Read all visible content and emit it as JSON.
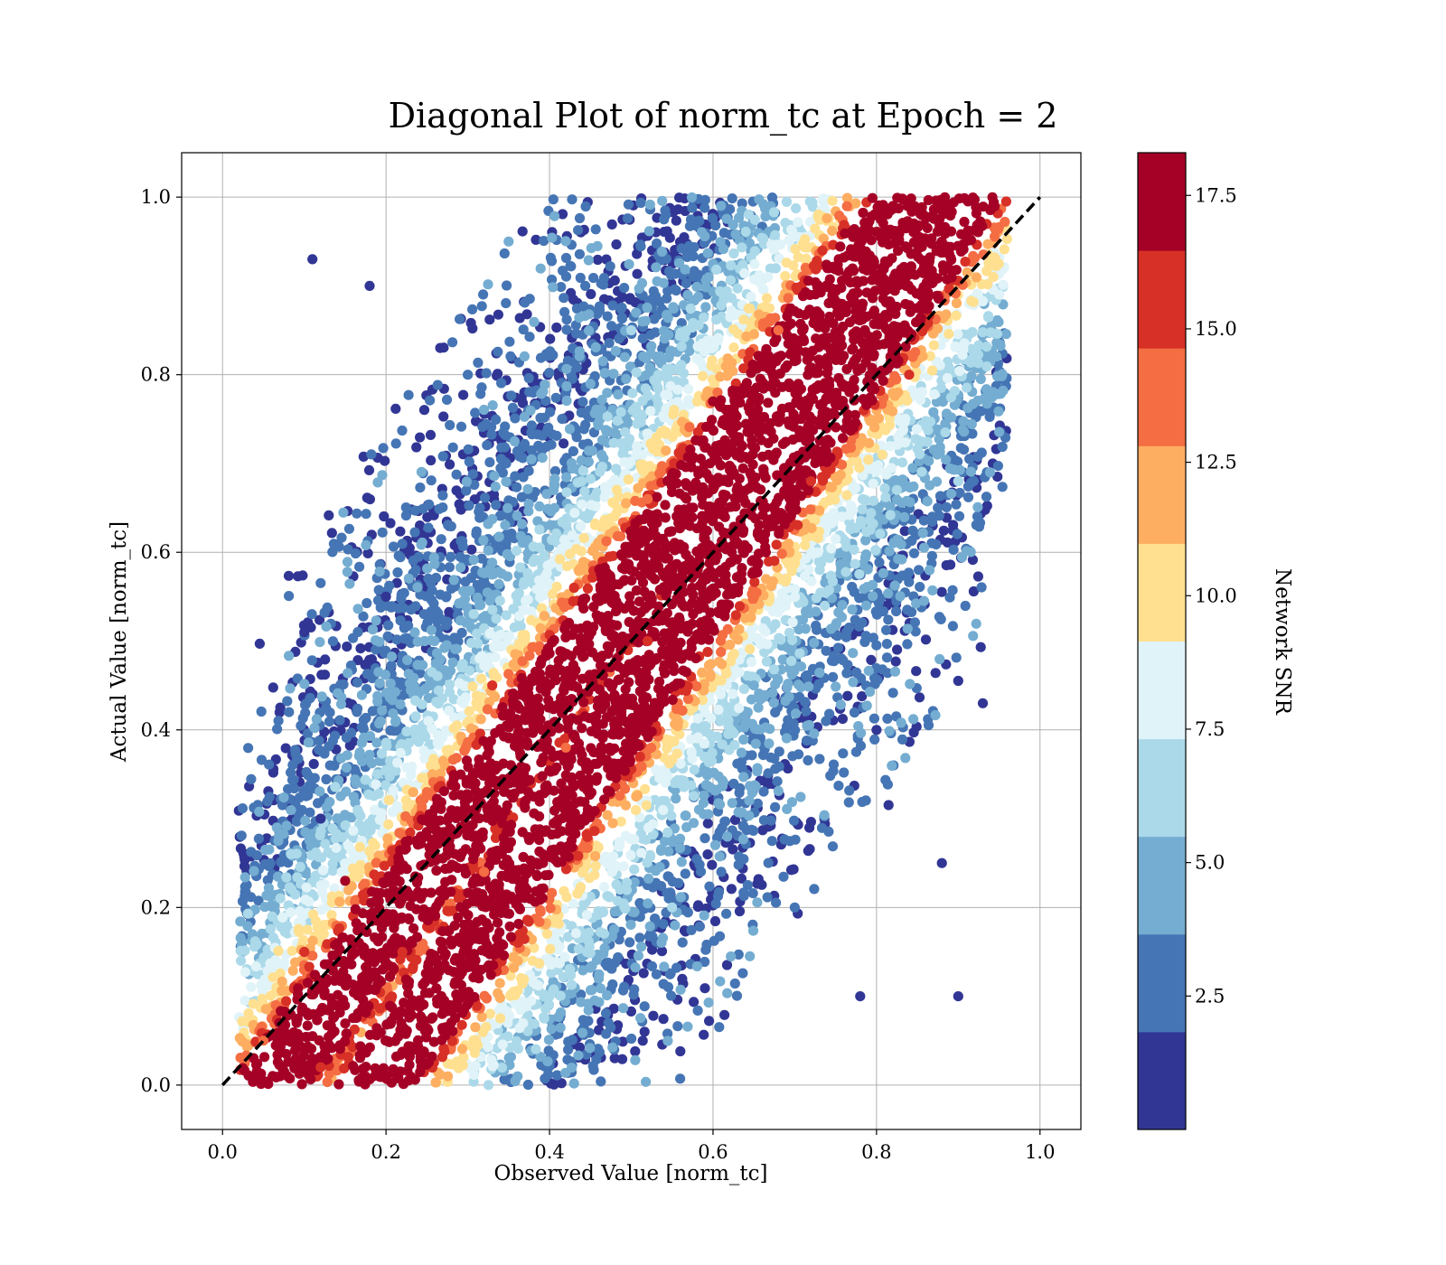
{
  "chart_data": {
    "type": "scatter",
    "title": "Diagonal Plot of norm_tc at Epoch = 2",
    "xlabel": "Observed Value [norm_tc]",
    "ylabel": "Actual Value [norm_tc]",
    "xlim": [
      -0.05,
      1.05
    ],
    "ylim": [
      -0.05,
      1.05
    ],
    "xticks": [
      "0.0",
      "0.2",
      "0.4",
      "0.6",
      "0.8",
      "1.0"
    ],
    "yticks": [
      "0.0",
      "0.2",
      "0.4",
      "0.6",
      "0.8",
      "1.0"
    ],
    "grid": true,
    "reference_line": {
      "style": "dashed",
      "color": "#000000",
      "x": [
        0,
        1
      ],
      "y": [
        0,
        1
      ]
    },
    "colorbar": {
      "label": "Network SNR",
      "range": [
        0.0,
        18.3
      ],
      "tick_values": [
        2.5,
        5.0,
        7.5,
        10.0,
        12.5,
        15.0,
        17.5
      ],
      "tick_labels": [
        "2.5",
        "5.0",
        "7.5",
        "10.0",
        "12.5",
        "15.0",
        "17.5"
      ],
      "bins": [
        {
          "color": "#313695",
          "from": 0.0,
          "to": 1.83
        },
        {
          "color": "#4575b4",
          "from": 1.83,
          "to": 3.66
        },
        {
          "color": "#74add1",
          "from": 3.66,
          "to": 5.49
        },
        {
          "color": "#abd9e9",
          "from": 5.49,
          "to": 7.32
        },
        {
          "color": "#e0f3f8",
          "from": 7.32,
          "to": 9.15
        },
        {
          "color": "#fee090",
          "from": 9.15,
          "to": 10.98
        },
        {
          "color": "#fdae61",
          "from": 10.98,
          "to": 12.81
        },
        {
          "color": "#f46d43",
          "from": 12.81,
          "to": 14.64
        },
        {
          "color": "#d73027",
          "from": 14.64,
          "to": 16.47
        },
        {
          "color": "#a50026",
          "from": 16.47,
          "to": 18.3
        }
      ]
    },
    "series": [
      {
        "colored_by": "Network SNR",
        "description_points": [
          {
            "x": 0.05,
            "y": 0.05,
            "snr": 14.0
          },
          {
            "x": 0.1,
            "y": 0.15,
            "snr": 15.0
          },
          {
            "x": 0.15,
            "y": 0.23,
            "snr": 17.0
          },
          {
            "x": 0.25,
            "y": 0.33,
            "snr": 13.0
          },
          {
            "x": 0.33,
            "y": 0.45,
            "snr": 16.0
          },
          {
            "x": 0.43,
            "y": 0.56,
            "snr": 15.5
          },
          {
            "x": 0.52,
            "y": 0.66,
            "snr": 14.0
          },
          {
            "x": 0.6,
            "y": 0.77,
            "snr": 17.0
          },
          {
            "x": 0.68,
            "y": 0.85,
            "snr": 14.5
          },
          {
            "x": 0.74,
            "y": 0.92,
            "snr": 17.5
          },
          {
            "x": 0.82,
            "y": 0.99,
            "snr": 17.0
          },
          {
            "x": 0.12,
            "y": 0.02,
            "snr": 15.0
          },
          {
            "x": 0.22,
            "y": 0.15,
            "snr": 15.5
          },
          {
            "x": 0.32,
            "y": 0.24,
            "snr": 13.5
          },
          {
            "x": 0.42,
            "y": 0.38,
            "snr": 14.0
          },
          {
            "x": 0.52,
            "y": 0.5,
            "snr": 15.0
          },
          {
            "x": 0.61,
            "y": 0.58,
            "snr": 17.0
          },
          {
            "x": 0.72,
            "y": 0.68,
            "snr": 15.5
          },
          {
            "x": 0.84,
            "y": 0.8,
            "snr": 16.0
          },
          {
            "x": 0.88,
            "y": 0.95,
            "snr": 17.0
          },
          {
            "x": 0.3,
            "y": 0.8,
            "snr": 3.5
          },
          {
            "x": 0.35,
            "y": 0.95,
            "snr": 4.5
          },
          {
            "x": 0.18,
            "y": 0.9,
            "snr": 1.0
          },
          {
            "x": 0.2,
            "y": 0.55,
            "snr": 1.0
          },
          {
            "x": 0.12,
            "y": 0.3,
            "snr": 1.0
          },
          {
            "x": 0.5,
            "y": 0.85,
            "snr": 7.0
          },
          {
            "x": 0.55,
            "y": 0.2,
            "snr": 6.0
          },
          {
            "x": 0.4,
            "y": 0.1,
            "snr": 7.0
          },
          {
            "x": 0.65,
            "y": 0.45,
            "snr": 5.0
          },
          {
            "x": 0.7,
            "y": 0.2,
            "snr": 2.5
          },
          {
            "x": 0.78,
            "y": 0.1,
            "snr": 1.0
          },
          {
            "x": 0.8,
            "y": 0.4,
            "snr": 1.0
          },
          {
            "x": 0.88,
            "y": 0.25,
            "snr": 1.0
          },
          {
            "x": 0.9,
            "y": 0.1,
            "snr": 1.0
          },
          {
            "x": 0.93,
            "y": 0.43,
            "snr": 1.0
          },
          {
            "x": 0.9,
            "y": 0.68,
            "snr": 7.0
          },
          {
            "x": 0.11,
            "y": 0.93,
            "snr": 1.0
          },
          {
            "x": 0.1,
            "y": 0.51,
            "snr": 1.0
          }
        ]
      }
    ]
  }
}
